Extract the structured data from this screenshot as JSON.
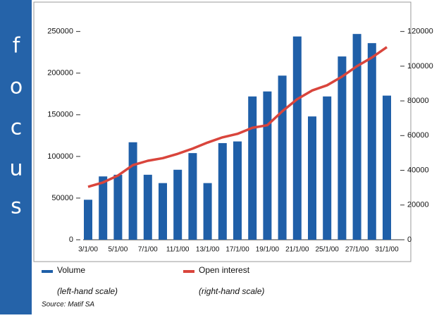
{
  "sidebar_letters": [
    "f",
    "o",
    "c",
    "u",
    "s"
  ],
  "chart_data": {
    "type": "bar-line",
    "categories": [
      "3/1/00",
      null,
      "5/1/00",
      null,
      "7/1/00",
      null,
      "11/1/00",
      null,
      "13/1/00",
      null,
      "17/1/00",
      null,
      "19/1/00",
      null,
      "21/1/00",
      null,
      "25/1/00",
      null,
      "27/1/00",
      null,
      "31/1/00"
    ],
    "series": [
      {
        "name": "Volume",
        "note": "(left-hand scale)",
        "type": "bar",
        "color": "#1f5fa8",
        "values": [
          48000,
          76000,
          78000,
          117000,
          78000,
          68000,
          84000,
          104000,
          68000,
          116000,
          118000,
          172000,
          178000,
          197000,
          244000,
          148000,
          172000,
          220000,
          247000,
          236000,
          173000
        ]
      },
      {
        "name": "Open interest",
        "note": "(right-hand scale)",
        "type": "line",
        "axis": "y2",
        "color": "#d9453c",
        "values": [
          30500,
          33000,
          37000,
          43000,
          45500,
          47000,
          49500,
          52500,
          56000,
          59000,
          61000,
          64500,
          66000,
          74000,
          81000,
          86000,
          89000,
          94000,
          100000,
          105000,
          111000
        ]
      }
    ],
    "ylim": [
      0,
      270000
    ],
    "yticks": [
      0,
      50000,
      100000,
      150000,
      200000,
      250000
    ],
    "y2lim": [
      0,
      129600
    ],
    "y2ticks": [
      0,
      20000,
      40000,
      60000,
      80000,
      100000,
      120000
    ],
    "source": "Source: Matif SA"
  }
}
